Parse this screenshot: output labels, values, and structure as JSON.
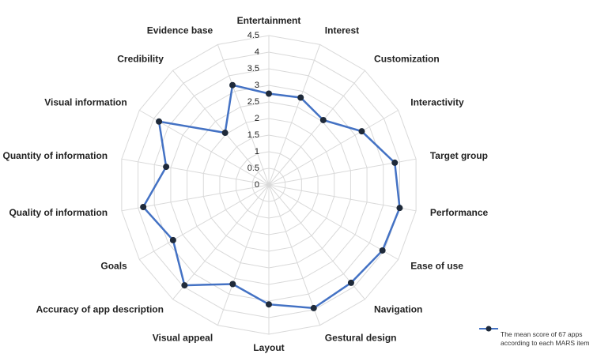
{
  "chart_data": {
    "type": "radar",
    "categories": [
      "Entertainment",
      "Interest",
      "Customization",
      "Interactivity",
      "Target group",
      "Performance",
      "Ease of use",
      "Navigation",
      "Gestural design",
      "Layout",
      "Visual appeal",
      "Accuracy of app description",
      "Goals",
      "Quality of information",
      "Quantity of information",
      "Visual information",
      "Credibility",
      "Evidence base"
    ],
    "series": [
      {
        "name": "The mean score of 67 apps according to each MARS item",
        "color": "#4472c4",
        "values": [
          2.75,
          2.8,
          2.55,
          3.23,
          3.85,
          4.0,
          3.95,
          3.85,
          3.95,
          3.6,
          3.18,
          3.95,
          3.33,
          3.84,
          3.14,
          3.82,
          2.05,
          3.2
        ]
      }
    ],
    "ylim": [
      0,
      4.5
    ],
    "yticks": [
      0,
      0.5,
      1,
      1.5,
      2,
      2.5,
      3,
      3.5,
      4,
      4.5
    ],
    "grid": true,
    "legend": "bottom-right"
  }
}
